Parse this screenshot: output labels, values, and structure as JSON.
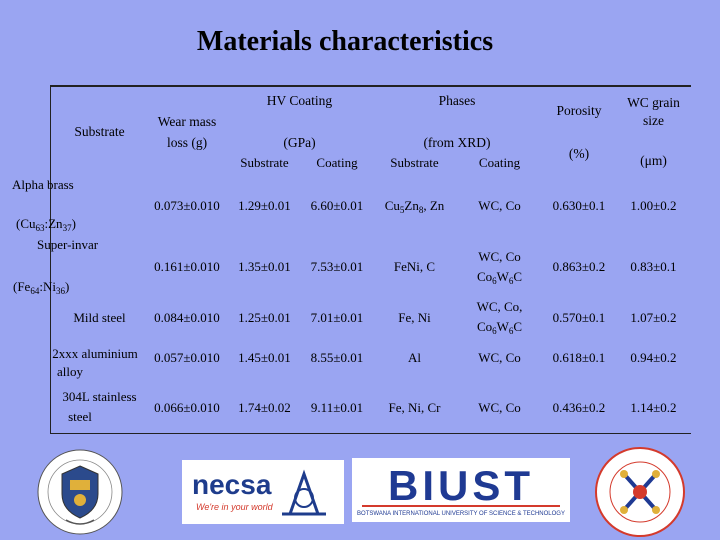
{
  "title": "Materials characteristics",
  "headers": {
    "substrate": "Substrate",
    "wear_mass": [
      "Wear mass",
      "loss (g)"
    ],
    "hv_coating": "HV Coating",
    "gpa": "(GPa)",
    "hv_sub": [
      "Substrate",
      "Coating"
    ],
    "phases": "Phases",
    "from_xrd": "(from XRD)",
    "phases_sub": [
      "Substrate",
      "Coating"
    ],
    "porosity": "Porosity",
    "porosity_unit": "(%)",
    "wc_grain": [
      "WC grain",
      "size"
    ],
    "wc_unit": "(μm)"
  },
  "rows": [
    {
      "substrate": [
        "Alpha brass",
        "(Cu63:Zn37)"
      ],
      "wear": "0.073±0.010",
      "hv_sub": "1.29±0.01",
      "hv_coat": "6.60±0.01",
      "ph_sub": "Cu5Zn8, Zn",
      "ph_coat": [
        "WC, Co"
      ],
      "porosity": "0.630±0.1",
      "grain": "1.00±0.2"
    },
    {
      "substrate": [
        "Super-invar",
        "(Fe64:Ni36)"
      ],
      "wear": "0.161±0.010",
      "hv_sub": "1.35±0.01",
      "hv_coat": "7.53±0.01",
      "ph_sub": "FeNi, C",
      "ph_coat": [
        "WC, Co",
        "Co6W6C"
      ],
      "porosity": "0.863±0.2",
      "grain": "0.83±0.1"
    },
    {
      "substrate": [
        "Mild steel"
      ],
      "wear": "0.084±0.010",
      "hv_sub": "1.25±0.01",
      "hv_coat": "7.01±0.01",
      "ph_sub": "Fe, Ni",
      "ph_coat": [
        "WC, Co,",
        "Co6W6C"
      ],
      "porosity": "0.570±0.1",
      "grain": "1.07±0.2"
    },
    {
      "substrate": [
        "2xxx aluminium",
        "alloy"
      ],
      "wear": "0.057±0.010",
      "hv_sub": "1.45±0.01",
      "hv_coat": "8.55±0.01",
      "ph_sub": "Al",
      "ph_coat": [
        "WC, Co"
      ],
      "porosity": "0.618±0.1",
      "grain": "0.94±0.2"
    },
    {
      "substrate": [
        "304L stainless",
        "steel"
      ],
      "wear": "0.066±0.010",
      "hv_sub": "1.74±0.02",
      "hv_coat": "9.11±0.01",
      "ph_sub": "Fe, Ni, Cr",
      "ph_coat": [
        "WC, Co"
      ],
      "porosity": "0.436±0.2",
      "grain": "1.14±0.2"
    }
  ],
  "logos": {
    "necsa_name": "necsa",
    "necsa_tagline": "We're in your world",
    "biust_name": "BIUST",
    "biust_full": "BOTSWANA INTERNATIONAL UNIVERSITY OF SCIENCE & TECHNOLOGY"
  },
  "colors": {
    "background": "#9aa5f2",
    "necsa_blue": "#1e3c8c",
    "biust_blue": "#1f3a93",
    "biust_red": "#d43a2c"
  }
}
